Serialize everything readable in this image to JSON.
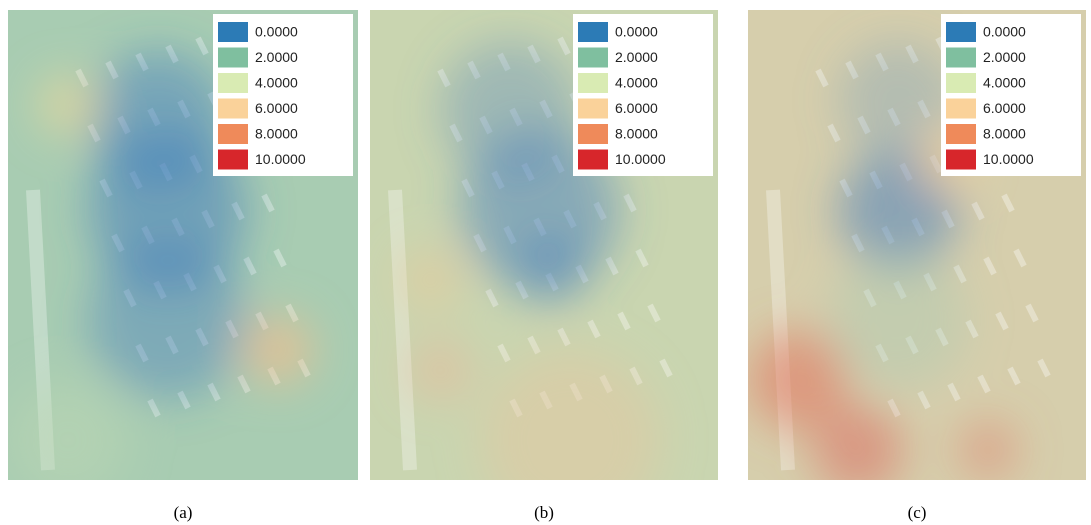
{
  "panels": [
    {
      "caption": "(a)"
    },
    {
      "caption": "(b)"
    },
    {
      "caption": "(c)"
    }
  ],
  "legend": {
    "items": [
      {
        "value": 0,
        "label": "0.0000",
        "color": "#2c7bb6"
      },
      {
        "value": 2,
        "label": "2.0000",
        "color": "#7fbf9f"
      },
      {
        "value": 4,
        "label": "4.0000",
        "color": "#d9ebb3"
      },
      {
        "value": 6,
        "label": "6.0000",
        "color": "#fad29a"
      },
      {
        "value": 8,
        "label": "8.0000",
        "color": "#ef8a5a"
      },
      {
        "value": 10,
        "label": "10.0000",
        "color": "#d7262b"
      }
    ]
  }
}
